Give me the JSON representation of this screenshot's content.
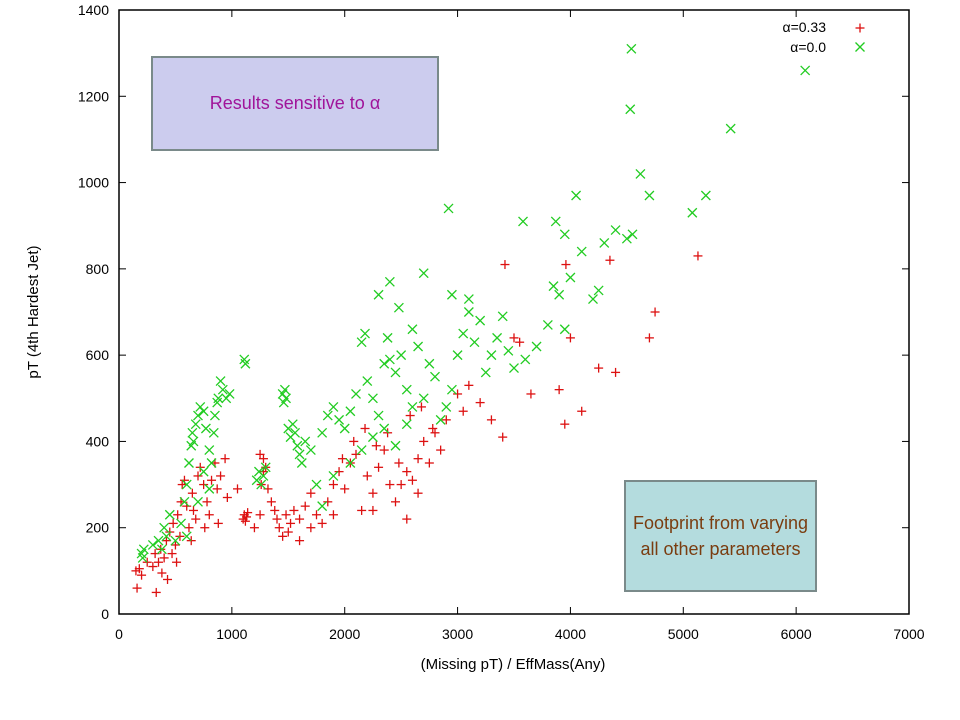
{
  "chart_data": {
    "type": "scatter",
    "xlabel": "(Missing pT) / EffMass(Any)",
    "ylabel": "pT (4th Hardest Jet)",
    "xlim": [
      0,
      7000
    ],
    "ylim": [
      0,
      1400
    ],
    "x_ticks": [
      "0",
      "1000",
      "2000",
      "3000",
      "4000",
      "5000",
      "6000",
      "7000"
    ],
    "y_ticks": [
      "0",
      "200",
      "400",
      "600",
      "800",
      "1000",
      "1200",
      "1400"
    ],
    "legend_position": "top-right",
    "series": [
      {
        "name": "α=0.33",
        "marker": "plus",
        "color": "#dd1111",
        "points": [
          [
            150,
            100
          ],
          [
            180,
            105
          ],
          [
            160,
            60
          ],
          [
            200,
            90
          ],
          [
            250,
            120
          ],
          [
            300,
            110
          ],
          [
            320,
            140
          ],
          [
            350,
            120
          ],
          [
            370,
            150
          ],
          [
            330,
            50
          ],
          [
            380,
            95
          ],
          [
            400,
            130
          ],
          [
            420,
            170
          ],
          [
            450,
            190
          ],
          [
            480,
            210
          ],
          [
            500,
            160
          ],
          [
            520,
            230
          ],
          [
            550,
            260
          ],
          [
            560,
            300
          ],
          [
            580,
            310
          ],
          [
            600,
            250
          ],
          [
            620,
            200
          ],
          [
            650,
            280
          ],
          [
            680,
            220
          ],
          [
            700,
            320
          ],
          [
            720,
            340
          ],
          [
            750,
            300
          ],
          [
            780,
            260
          ],
          [
            800,
            230
          ],
          [
            820,
            310
          ],
          [
            850,
            350
          ],
          [
            870,
            290
          ],
          [
            900,
            320
          ],
          [
            430,
            80
          ],
          [
            470,
            140
          ],
          [
            510,
            120
          ],
          [
            540,
            180
          ],
          [
            640,
            170
          ],
          [
            660,
            240
          ],
          [
            760,
            200
          ],
          [
            880,
            210
          ],
          [
            940,
            360
          ],
          [
            1100,
            220
          ],
          [
            1110,
            230
          ],
          [
            1120,
            215
          ],
          [
            1130,
            225
          ],
          [
            1140,
            235
          ],
          [
            1200,
            200
          ],
          [
            1250,
            230
          ],
          [
            1260,
            300
          ],
          [
            1280,
            360
          ],
          [
            1300,
            340
          ],
          [
            1320,
            290
          ],
          [
            1350,
            260
          ],
          [
            1380,
            240
          ],
          [
            1400,
            220
          ],
          [
            1420,
            200
          ],
          [
            1450,
            180
          ],
          [
            1480,
            230
          ],
          [
            1500,
            190
          ],
          [
            1520,
            210
          ],
          [
            1550,
            240
          ],
          [
            1600,
            220
          ],
          [
            1650,
            250
          ],
          [
            1700,
            280
          ],
          [
            1750,
            230
          ],
          [
            1800,
            210
          ],
          [
            1850,
            260
          ],
          [
            1900,
            300
          ],
          [
            1950,
            330
          ],
          [
            2000,
            290
          ],
          [
            2050,
            350
          ],
          [
            2100,
            370
          ],
          [
            2150,
            240
          ],
          [
            2200,
            320
          ],
          [
            2250,
            280
          ],
          [
            2300,
            340
          ],
          [
            2350,
            380
          ],
          [
            2400,
            300
          ],
          [
            2450,
            260
          ],
          [
            2500,
            300
          ],
          [
            2550,
            330
          ],
          [
            2600,
            310
          ],
          [
            2650,
            360
          ],
          [
            2700,
            400
          ],
          [
            2750,
            350
          ],
          [
            2800,
            420
          ],
          [
            2850,
            380
          ],
          [
            2900,
            450
          ],
          [
            3000,
            510
          ],
          [
            3050,
            470
          ],
          [
            3100,
            530
          ],
          [
            3200,
            490
          ],
          [
            3300,
            450
          ],
          [
            3400,
            410
          ],
          [
            3420,
            810
          ],
          [
            3500,
            640
          ],
          [
            3550,
            630
          ],
          [
            3650,
            510
          ],
          [
            3900,
            520
          ],
          [
            3950,
            440
          ],
          [
            3960,
            810
          ],
          [
            4000,
            640
          ],
          [
            4100,
            470
          ],
          [
            4250,
            570
          ],
          [
            4350,
            820
          ],
          [
            4400,
            560
          ],
          [
            4700,
            640
          ],
          [
            4750,
            700
          ],
          [
            5130,
            830
          ],
          [
            1980,
            360
          ],
          [
            2080,
            400
          ],
          [
            2180,
            430
          ],
          [
            2280,
            390
          ],
          [
            2380,
            420
          ],
          [
            2480,
            350
          ],
          [
            2580,
            460
          ],
          [
            2680,
            480
          ],
          [
            2780,
            430
          ],
          [
            1600,
            170
          ],
          [
            1700,
            200
          ],
          [
            1900,
            230
          ],
          [
            2250,
            240
          ],
          [
            2550,
            220
          ],
          [
            2650,
            280
          ],
          [
            1250,
            370
          ],
          [
            1280,
            330
          ],
          [
            1050,
            290
          ],
          [
            960,
            270
          ]
        ]
      },
      {
        "name": "α=0.0",
        "marker": "cross",
        "color": "#22cc22",
        "points": [
          [
            200,
            140
          ],
          [
            210,
            130
          ],
          [
            220,
            150
          ],
          [
            300,
            160
          ],
          [
            350,
            170
          ],
          [
            380,
            150
          ],
          [
            400,
            200
          ],
          [
            420,
            180
          ],
          [
            450,
            230
          ],
          [
            500,
            170
          ],
          [
            550,
            210
          ],
          [
            580,
            260
          ],
          [
            600,
            300
          ],
          [
            620,
            350
          ],
          [
            640,
            390
          ],
          [
            650,
            420
          ],
          [
            660,
            400
          ],
          [
            680,
            440
          ],
          [
            700,
            460
          ],
          [
            720,
            480
          ],
          [
            750,
            470
          ],
          [
            770,
            430
          ],
          [
            800,
            380
          ],
          [
            820,
            350
          ],
          [
            840,
            420
          ],
          [
            850,
            460
          ],
          [
            870,
            490
          ],
          [
            880,
            500
          ],
          [
            900,
            540
          ],
          [
            920,
            520
          ],
          [
            950,
            500
          ],
          [
            980,
            510
          ],
          [
            600,
            180
          ],
          [
            700,
            260
          ],
          [
            750,
            330
          ],
          [
            800,
            290
          ],
          [
            1110,
            590
          ],
          [
            1120,
            580
          ],
          [
            1220,
            310
          ],
          [
            1240,
            330
          ],
          [
            1260,
            300
          ],
          [
            1280,
            320
          ],
          [
            1300,
            340
          ],
          [
            1450,
            510
          ],
          [
            1460,
            490
          ],
          [
            1470,
            520
          ],
          [
            1480,
            500
          ],
          [
            1500,
            430
          ],
          [
            1520,
            410
          ],
          [
            1540,
            440
          ],
          [
            1560,
            420
          ],
          [
            1580,
            390
          ],
          [
            1600,
            370
          ],
          [
            1620,
            350
          ],
          [
            1650,
            400
          ],
          [
            1700,
            380
          ],
          [
            1750,
            300
          ],
          [
            1800,
            420
          ],
          [
            1850,
            460
          ],
          [
            1900,
            480
          ],
          [
            1950,
            450
          ],
          [
            2000,
            430
          ],
          [
            2050,
            470
          ],
          [
            2100,
            510
          ],
          [
            2150,
            630
          ],
          [
            2180,
            650
          ],
          [
            2200,
            540
          ],
          [
            2250,
            500
          ],
          [
            2300,
            460
          ],
          [
            2350,
            580
          ],
          [
            2380,
            640
          ],
          [
            2400,
            590
          ],
          [
            2450,
            560
          ],
          [
            2500,
            600
          ],
          [
            2550,
            520
          ],
          [
            2600,
            480
          ],
          [
            2650,
            620
          ],
          [
            2700,
            500
          ],
          [
            2750,
            580
          ],
          [
            2800,
            550
          ],
          [
            2850,
            450
          ],
          [
            2900,
            480
          ],
          [
            2950,
            520
          ],
          [
            3000,
            600
          ],
          [
            3050,
            650
          ],
          [
            3100,
            700
          ],
          [
            3150,
            630
          ],
          [
            3200,
            680
          ],
          [
            3250,
            560
          ],
          [
            3300,
            600
          ],
          [
            3350,
            640
          ],
          [
            3400,
            690
          ],
          [
            3450,
            610
          ],
          [
            3500,
            570
          ],
          [
            3600,
            590
          ],
          [
            3700,
            620
          ],
          [
            3800,
            670
          ],
          [
            3850,
            760
          ],
          [
            3900,
            740
          ],
          [
            3950,
            660
          ],
          [
            4000,
            780
          ],
          [
            4100,
            840
          ],
          [
            4200,
            730
          ],
          [
            4250,
            750
          ],
          [
            4300,
            860
          ],
          [
            4400,
            890
          ],
          [
            4500,
            870
          ],
          [
            4550,
            880
          ],
          [
            4620,
            1020
          ],
          [
            4700,
            970
          ],
          [
            4540,
            1310
          ],
          [
            4530,
            1170
          ],
          [
            5080,
            930
          ],
          [
            5200,
            970
          ],
          [
            5420,
            1125
          ],
          [
            6080,
            1260
          ],
          [
            2920,
            940
          ],
          [
            3580,
            910
          ],
          [
            3870,
            910
          ],
          [
            3950,
            880
          ],
          [
            4050,
            970
          ],
          [
            2400,
            770
          ],
          [
            2700,
            790
          ],
          [
            2950,
            740
          ],
          [
            3100,
            730
          ],
          [
            2480,
            710
          ],
          [
            2600,
            660
          ],
          [
            2300,
            740
          ],
          [
            1800,
            250
          ],
          [
            1900,
            320
          ],
          [
            2050,
            350
          ],
          [
            2150,
            380
          ],
          [
            2250,
            410
          ],
          [
            2350,
            430
          ],
          [
            2450,
            390
          ],
          [
            2550,
            440
          ]
        ]
      }
    ],
    "annotations": [
      {
        "text": "Results sensitive to α"
      },
      {
        "text": "Footprint from varying all other parameters"
      }
    ]
  },
  "colors": {
    "series_1": "#dd1111",
    "series_2": "#22cc22",
    "annotation_1_text": "#a0149a",
    "annotation_2_text": "#7a3d10"
  }
}
